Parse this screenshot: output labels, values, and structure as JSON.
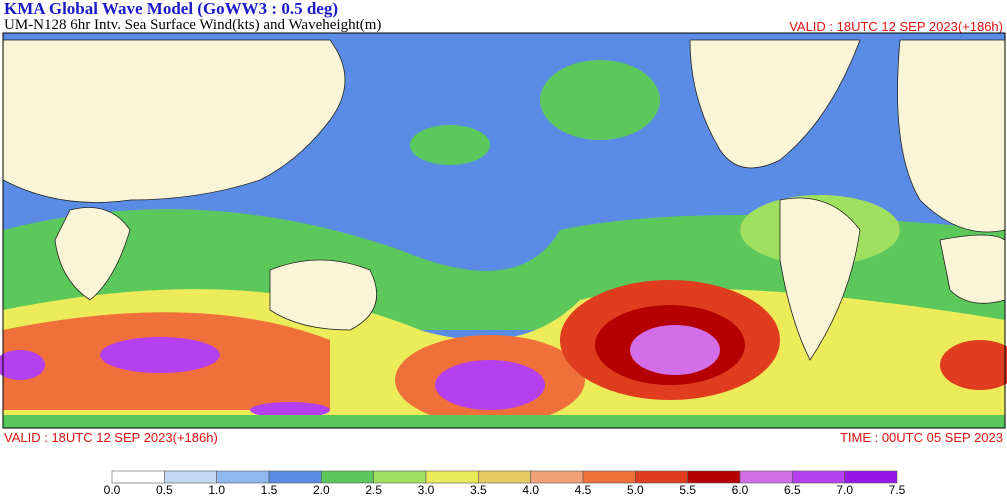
{
  "header": {
    "title": "KMA  Global Wave Model (GoWW3 : 0.5 deg)",
    "subtitle": "UM-N128  6hr Intv. Sea Surface Wind(kts) and Waveheight(m)",
    "valid_top": "VALID : 18UTC 12 SEP 2023(+186h)"
  },
  "footer": {
    "valid": "VALID : 18UTC 12 SEP 2023(+186h)",
    "time": "TIME : 00UTC 05 SEP 2023"
  },
  "legend": {
    "labels": [
      "0.0",
      "0.5",
      "1.0",
      "1.5",
      "2.0",
      "2.5",
      "3.0",
      "3.5",
      "4.0",
      "4.5",
      "5.0",
      "5.5",
      "6.0",
      "6.5",
      "7.0",
      "7.5"
    ],
    "colors": [
      "#ffffff",
      "#c3d9f2",
      "#8fb8ee",
      "#5a8ce6",
      "#5cc85c",
      "#a0e060",
      "#ecec5a",
      "#e8cc60",
      "#f2a078",
      "#f0703c",
      "#e03c1e",
      "#b40000",
      "#d36ee8",
      "#b440f0",
      "#9618e6"
    ]
  }
}
